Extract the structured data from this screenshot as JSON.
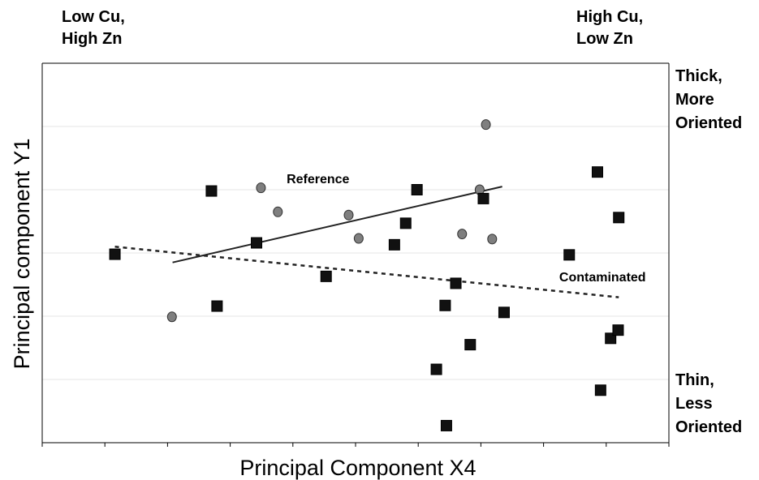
{
  "chart_data": {
    "type": "scatter",
    "title": "",
    "xlabel": "Principal Component X4",
    "ylabel": "Principal component Y1",
    "xlim": [
      0,
      10
    ],
    "ylim": [
      0,
      6
    ],
    "grid": "horizontal",
    "axis_tick_labels": false,
    "corner_labels": {
      "top_left": [
        "Low Cu,",
        "High Zn"
      ],
      "top_right": [
        "High Cu,",
        "Low Zn"
      ],
      "right_top": [
        "Thick,",
        "More",
        "Oriented"
      ],
      "right_bottom": [
        "Thin,",
        "Less",
        "Oriented"
      ]
    },
    "series": [
      {
        "marker": "circle",
        "color": "#7f7f7f",
        "points": [
          [
            2.07,
            1.99
          ],
          [
            3.49,
            4.03
          ],
          [
            3.76,
            3.65
          ],
          [
            4.89,
            3.6
          ],
          [
            5.05,
            3.23
          ],
          [
            6.7,
            3.3
          ],
          [
            6.98,
            4.0
          ],
          [
            7.08,
            5.03
          ],
          [
            7.18,
            3.22
          ]
        ]
      },
      {
        "marker": "square",
        "color": "#111111",
        "points": [
          [
            1.16,
            2.98
          ],
          [
            2.7,
            3.98
          ],
          [
            2.79,
            2.16
          ],
          [
            3.42,
            3.16
          ],
          [
            4.53,
            2.63
          ],
          [
            5.62,
            3.13
          ],
          [
            5.8,
            3.47
          ],
          [
            5.98,
            4.0
          ],
          [
            6.29,
            1.16
          ],
          [
            6.43,
            2.17
          ],
          [
            6.45,
            0.27
          ],
          [
            6.6,
            2.52
          ],
          [
            6.83,
            1.55
          ],
          [
            7.04,
            3.86
          ],
          [
            7.37,
            2.06
          ],
          [
            8.41,
            2.97
          ],
          [
            8.86,
            4.28
          ],
          [
            8.91,
            0.83
          ],
          [
            9.07,
            1.65
          ],
          [
            9.19,
            1.78
          ],
          [
            9.2,
            3.56
          ]
        ]
      }
    ],
    "trend_lines": [
      {
        "label": "Reference",
        "style": "solid",
        "points": [
          [
            2.08,
            2.85
          ],
          [
            7.34,
            4.05
          ]
        ]
      },
      {
        "label": "Contaminated",
        "style": "dashed",
        "points": [
          [
            1.16,
            3.1
          ],
          [
            9.2,
            2.3
          ]
        ]
      }
    ]
  }
}
